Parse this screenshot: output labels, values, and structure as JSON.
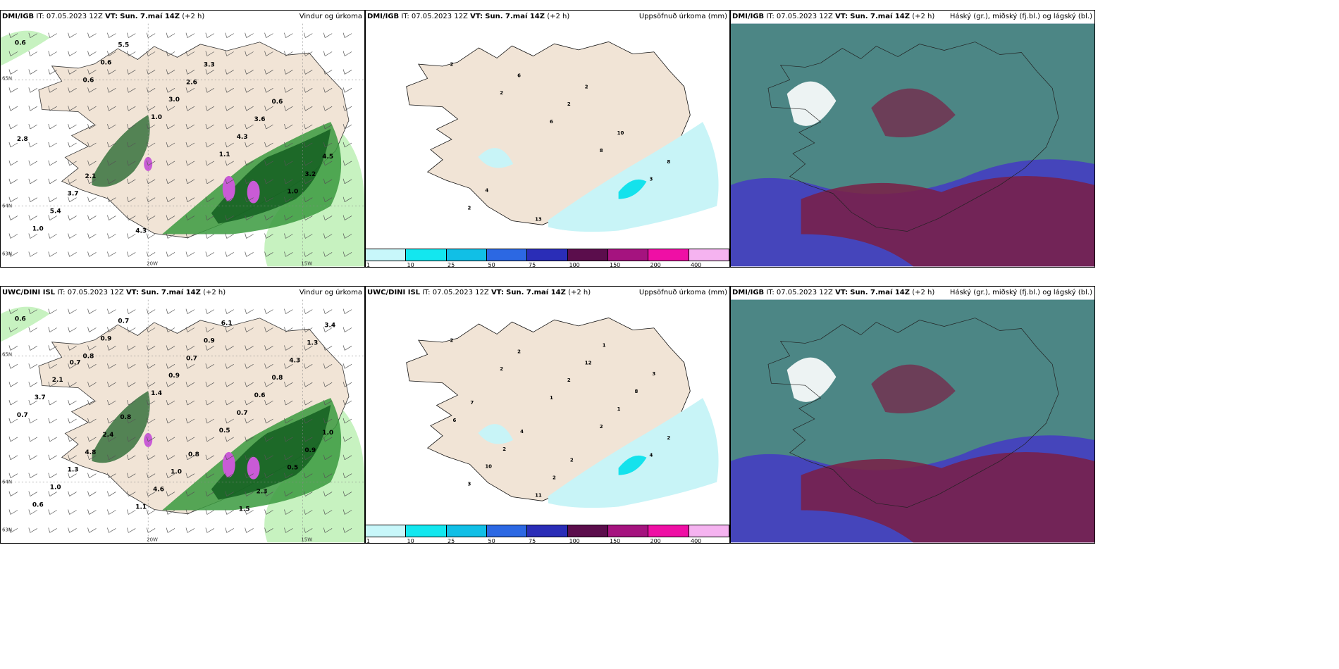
{
  "colors": {
    "land": "#f1e4d6",
    "precip_light": "#c8f4f7",
    "precip_mid": "#14e2ec",
    "green_dark": "#0f5a1d",
    "green_mid": "#3a9a3e",
    "green_light": "#c7f2c0",
    "magenta": "#c95bd6",
    "cloud_high": "#4d8d7f",
    "cloud_mid": "#4545bb",
    "cloud_low": "#7a1f45"
  },
  "panels": [
    {
      "model": "DMI/IGB",
      "it_prefix": "IT:",
      "it_value": "07.05.2023 12Z",
      "vt_prefix": "VT:",
      "vt_value": "Sun. 7.maí 14Z",
      "offset": "(+2 h)",
      "right_title": "Vindur og úrkoma",
      "axis_labels": [
        "20W",
        "15W",
        "65N",
        "64N",
        "63N"
      ],
      "values": [
        "0.6",
        "0.6",
        "1.0",
        "1.1",
        "1.0",
        "1.0",
        "0.6",
        "3.0",
        "4.3",
        "3.2",
        "5.4",
        "5.5",
        "2.6",
        "3.6",
        "4.5",
        "3.7",
        "4.3",
        "3.3",
        "0.6",
        "2.8",
        "2.1"
      ]
    },
    {
      "model": "DMI/IGB",
      "it_prefix": "IT:",
      "it_value": "07.05.2023 12Z",
      "vt_prefix": "VT:",
      "vt_value": "Sun. 7.maí 14Z",
      "offset": "(+2 h)",
      "right_title": "Uppsöfnuð úrkoma (mm)",
      "values": [
        "2",
        "2",
        "6",
        "8",
        "3",
        "2",
        "6",
        "2",
        "10",
        "8",
        "4",
        "13",
        "2"
      ],
      "colorbar": [
        "1",
        "10",
        "25",
        "50",
        "75",
        "100",
        "150",
        "200",
        "400"
      ]
    },
    {
      "model": "DMI/IGB",
      "it_prefix": "IT:",
      "it_value": "07.05.2023 12Z",
      "vt_prefix": "VT:",
      "vt_value": "Sun. 7.maí 14Z",
      "offset": "(+2 h)",
      "right_title": "Háský (gr.), miðský (fj.bl.) og lágský (bl.)"
    },
    {
      "model": "UWC/DINI ISL",
      "it_prefix": "IT:",
      "it_value": "07.05.2023 12Z",
      "vt_prefix": "VT:",
      "vt_value": "Sun. 7.maí 14Z",
      "offset": "(+2 h)",
      "right_title": "Vindur og úrkoma",
      "axis_labels": [
        "20W",
        "15W",
        "65N",
        "64N",
        "63N"
      ],
      "values": [
        "0.6",
        "0.8",
        "1.4",
        "0.5",
        "0.5",
        "0.6",
        "0.9",
        "0.9",
        "0.7",
        "0.9",
        "1.0",
        "0.7",
        "0.7",
        "0.6",
        "1.0",
        "1.3",
        "1.1",
        "0.9",
        "0.8",
        "0.7",
        "4.8",
        "4.6",
        "6.1",
        "4.3",
        "3.7",
        "2.4",
        "1.0",
        "1.5",
        "1.3",
        "2.1",
        "0.8",
        "0.8",
        "2.3",
        "3.4",
        "0.7"
      ]
    },
    {
      "model": "UWC/DINI ISL",
      "it_prefix": "IT:",
      "it_value": "07.05.2023 12Z",
      "vt_prefix": "VT:",
      "vt_value": "Sun. 7.maí 14Z",
      "offset": "(+2 h)",
      "right_title": "Uppsöfnuð úrkoma (mm)",
      "values": [
        "2",
        "2",
        "1",
        "2",
        "4",
        "3",
        "2",
        "2",
        "1",
        "2",
        "10",
        "11",
        "12",
        "8",
        "6",
        "2",
        "2",
        "1",
        "3",
        "7",
        "4",
        "2"
      ],
      "colorbar": [
        "1",
        "10",
        "25",
        "50",
        "75",
        "100",
        "150",
        "200",
        "400"
      ]
    },
    {
      "model": "DMI/IGB",
      "it_prefix": "IT:",
      "it_value": "07.05.2023 12Z",
      "vt_prefix": "VT:",
      "vt_value": "Sun. 7.maí 14Z",
      "offset": "(+2 h)",
      "right_title": "Háský (gr.), miðský (fj.bl.) og lágský (bl.)"
    }
  ],
  "colorbar_colors": [
    "#c8f7fa",
    "#13e7ef",
    "#11bfe6",
    "#2c68e3",
    "#2a2db7",
    "#5b0d4c",
    "#a5137f",
    "#ef0fa5",
    "#f5b3f0"
  ]
}
